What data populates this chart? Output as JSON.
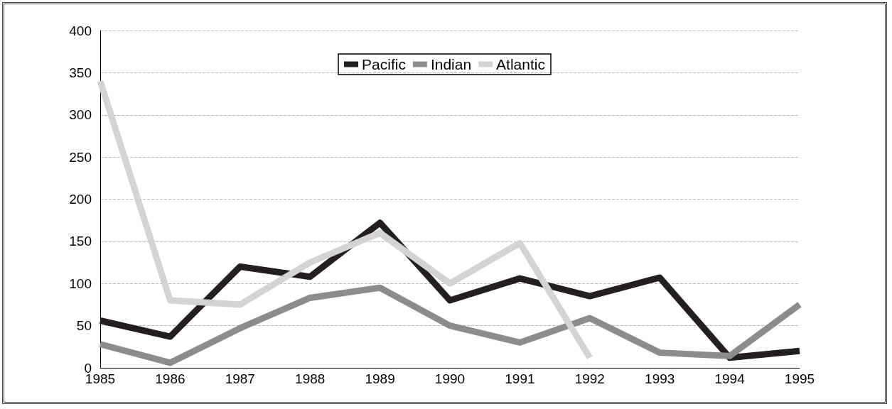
{
  "chart_data": {
    "type": "line",
    "categories": [
      "1985",
      "1986",
      "1987",
      "1988",
      "1989",
      "1990",
      "1991",
      "1992",
      "1993",
      "1994",
      "1995"
    ],
    "series": [
      {
        "name": "Pacific",
        "color": "#231f20",
        "values": [
          56,
          37,
          120,
          108,
          172,
          80,
          106,
          85,
          107,
          12,
          20
        ]
      },
      {
        "name": "Indian",
        "color": "#8c8c8c",
        "values": [
          28,
          6,
          47,
          83,
          95,
          50,
          30,
          59,
          18,
          14,
          75
        ]
      },
      {
        "name": "Atlantic",
        "color": "#d4d4d4",
        "values": [
          340,
          80,
          75,
          125,
          160,
          100,
          148,
          12,
          null,
          null,
          null
        ]
      }
    ],
    "ylim": [
      0,
      400
    ],
    "yticks": [
      0,
      50,
      100,
      150,
      200,
      250,
      300,
      350,
      400
    ],
    "grid": "y",
    "legend": "top",
    "marker": "none",
    "line_style": "solid"
  }
}
